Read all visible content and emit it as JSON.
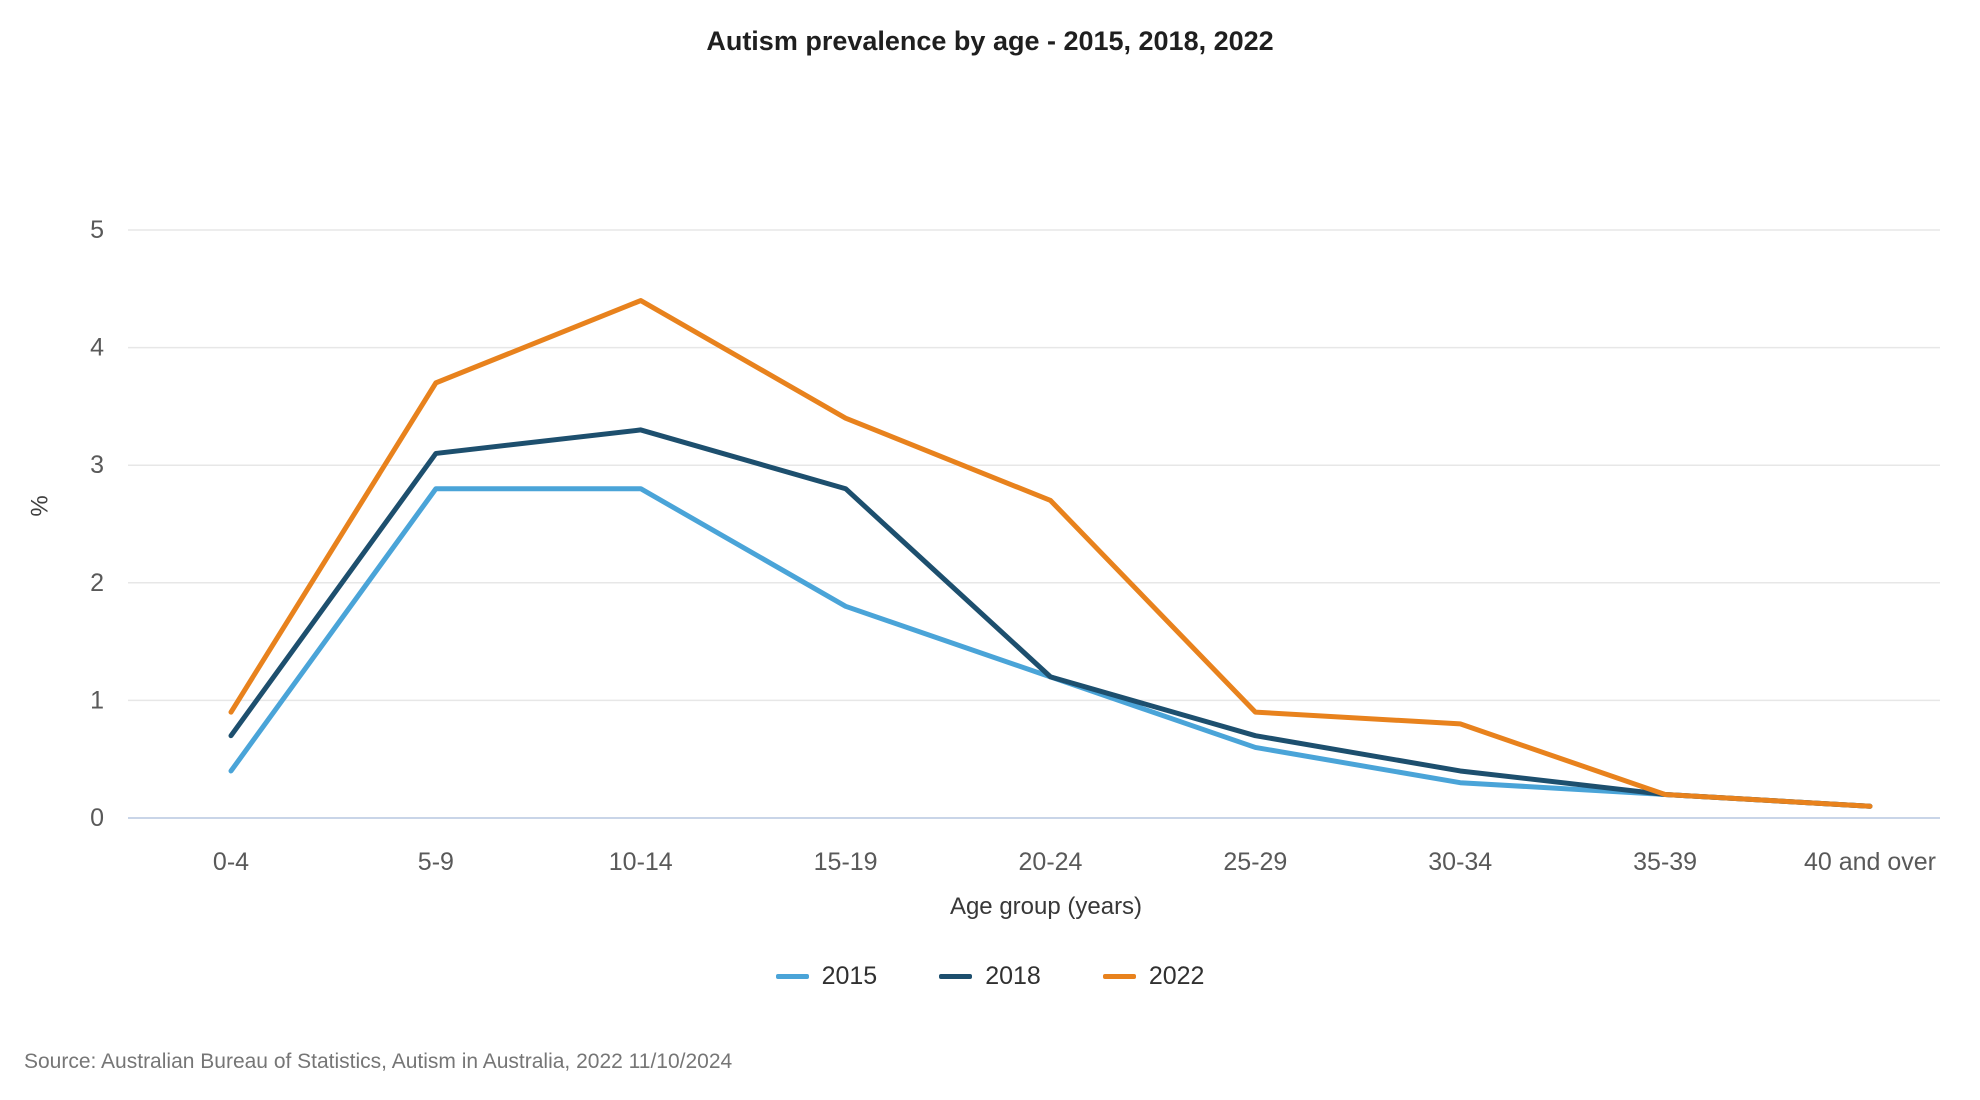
{
  "chart_data": {
    "type": "line",
    "title": "Autism prevalence by age - 2015, 2018, 2022",
    "xlabel": "Age group (years)",
    "ylabel": "%",
    "categories": [
      "0-4",
      "5-9",
      "10-14",
      "15-19",
      "20-24",
      "25-29",
      "30-34",
      "35-39",
      "40 and over"
    ],
    "series": [
      {
        "name": "2015",
        "color": "#4aa4d8",
        "values": [
          0.4,
          2.8,
          2.8,
          1.8,
          1.2,
          0.6,
          0.3,
          0.2,
          0.1
        ]
      },
      {
        "name": "2018",
        "color": "#1d4f6e",
        "values": [
          0.7,
          3.1,
          3.3,
          2.8,
          1.2,
          0.7,
          0.4,
          0.2,
          0.1
        ]
      },
      {
        "name": "2022",
        "color": "#e8821d",
        "values": [
          0.9,
          3.7,
          4.4,
          3.4,
          2.7,
          0.9,
          0.8,
          0.2,
          0.1
        ]
      }
    ],
    "ylim": [
      0,
      5
    ],
    "y_ticks": [
      0,
      1,
      2,
      3,
      4,
      5
    ],
    "grid": "horizontal",
    "legend_position": "bottom",
    "colors": {
      "grid_line": "#e7e7e7",
      "zero_line": "#c9d5e8",
      "tick_label": "#595959",
      "title_text": "#1f1f1f"
    }
  },
  "source_note": "Source: Australian Bureau of Statistics, Autism in Australia, 2022 11/10/2024"
}
